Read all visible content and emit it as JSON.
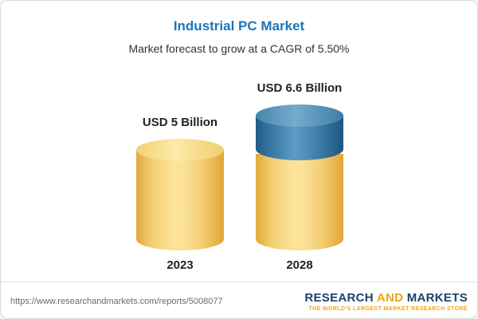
{
  "page": {
    "title": "Industrial PC Market",
    "subtitle": "Market forecast to grow at a CAGR of 5.50%"
  },
  "chart_data": {
    "type": "bar",
    "title": "Industrial PC Market",
    "subtitle": "Market forecast to grow at a CAGR of 5.50%",
    "cagr": "5.50%",
    "categories": [
      "2023",
      "2028"
    ],
    "values": [
      5,
      6.6
    ],
    "value_labels": [
      "USD 5 Billion",
      "USD 6.6 Billion"
    ],
    "units": "USD Billion",
    "ylim": [
      0,
      7
    ],
    "legend": "none",
    "grid": false,
    "colors": {
      "bar_body": "#f7d47a",
      "growth_segment_top": "#3f7ca6",
      "title": "#1a75bc"
    },
    "notes": "Cylinder-style bars; the 2028 bar shows its incremental growth over 2023 as a blue segment on top of the yellow base."
  },
  "footer": {
    "url": "https://www.researchandmarkets.com/reports/5008077",
    "logo": {
      "part1": "RESEARCH",
      "part2": "AND",
      "part3": "MARKETS",
      "tagline": "THE WORLD'S LARGEST MARKET RESEARCH STORE"
    }
  }
}
